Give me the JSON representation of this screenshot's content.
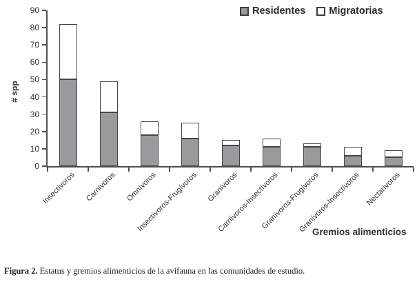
{
  "chart_data": {
    "type": "bar",
    "stacked": true,
    "categories": [
      "Insectívoros",
      "Carnívoros",
      "Omnívoros",
      "Insectívoros-Frugívoros",
      "Granívoros",
      "Carnívoros-Insectívoros",
      "Granívoros-Frugívoros",
      "Granívoros-Insectívoros",
      "Nectarívoros"
    ],
    "series": [
      {
        "name": "Residentes",
        "color": "#999a9b",
        "values": [
          50,
          31,
          18,
          16,
          12,
          11,
          11,
          6,
          5
        ]
      },
      {
        "name": "Migratorias",
        "color": "#ffffff",
        "values": [
          32,
          18,
          8,
          9,
          3,
          5,
          2,
          5,
          4
        ]
      }
    ],
    "totals": [
      82,
      49,
      26,
      25,
      15,
      16,
      13,
      11,
      9
    ],
    "xlabel": "Gremios alimenticios",
    "ylabel": "# spp",
    "ylim": [
      0,
      90
    ],
    "yticks": [
      0,
      10,
      20,
      30,
      40,
      50,
      60,
      70,
      80,
      90
    ],
    "grid": false,
    "legend_position": "top-right"
  },
  "colors": {
    "residentes_fill": "#999a9b",
    "migratorias_fill": "#ffffff",
    "bar_border": "#454545",
    "axis": "#4f4f4f",
    "text": "#333333"
  },
  "caption": {
    "label": "Figura 2.",
    "text": "Estatus y gremios alimenticios de la avifauna en las comunidades de estudio."
  }
}
